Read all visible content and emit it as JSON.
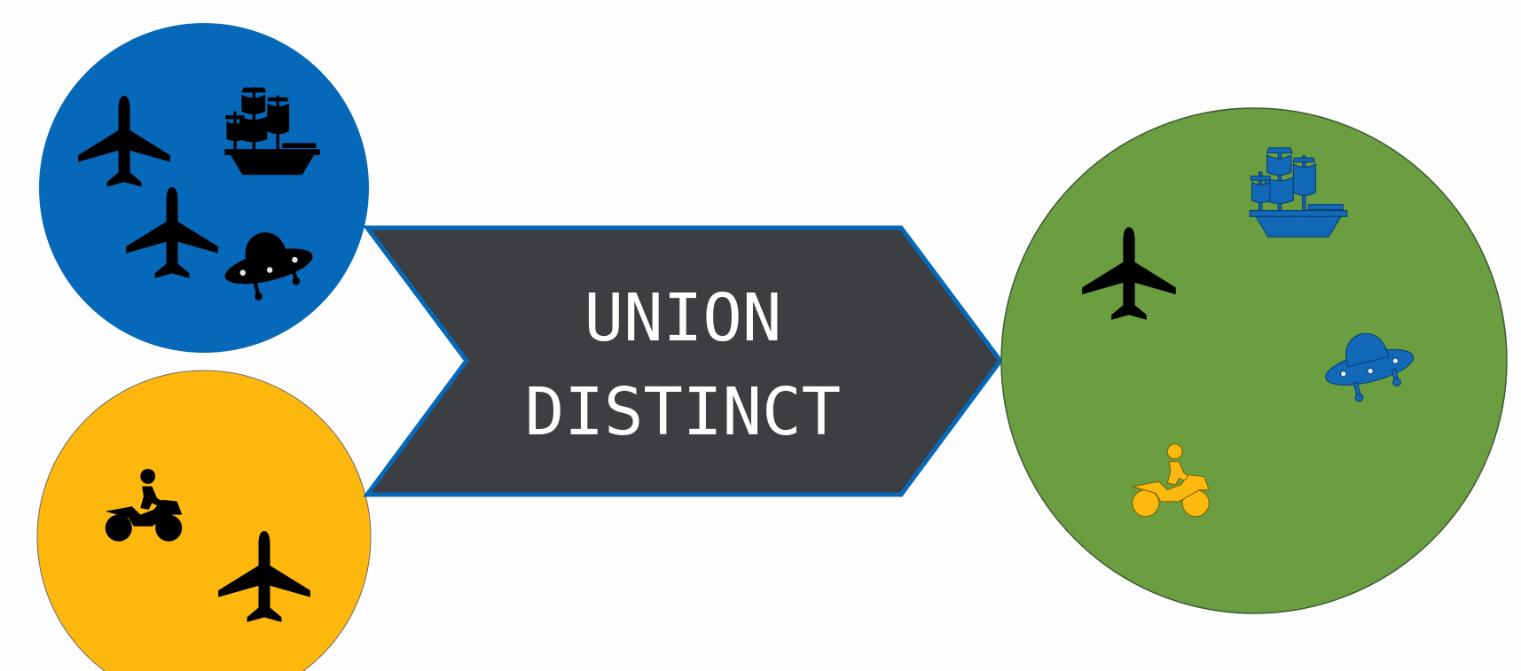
{
  "diagram": {
    "operation": {
      "line1": "UNION",
      "line2": "DISTINCT"
    }
  },
  "colors": {
    "set_a": "#0568b9",
    "set_b": "#feb80d",
    "result": "#6a9e41",
    "arrow_fill": "#3d3e42",
    "arrow_border": "#0568b9",
    "icon_black": "#000000",
    "icon_blue": "#1169b8",
    "icon_yellow": "#fbb80e",
    "text": "#ffffff",
    "background": "#fdfdfd"
  },
  "sets": {
    "set_a": {
      "icons": [
        "airplane-icon",
        "ship-icon",
        "airplane-icon",
        "ufo-icon"
      ]
    },
    "set_b": {
      "icons": [
        "motorcycle-icon",
        "airplane-icon"
      ]
    },
    "result": {
      "icons": [
        "airplane-icon",
        "ship-icon",
        "ufo-icon",
        "motorcycle-icon"
      ]
    }
  }
}
